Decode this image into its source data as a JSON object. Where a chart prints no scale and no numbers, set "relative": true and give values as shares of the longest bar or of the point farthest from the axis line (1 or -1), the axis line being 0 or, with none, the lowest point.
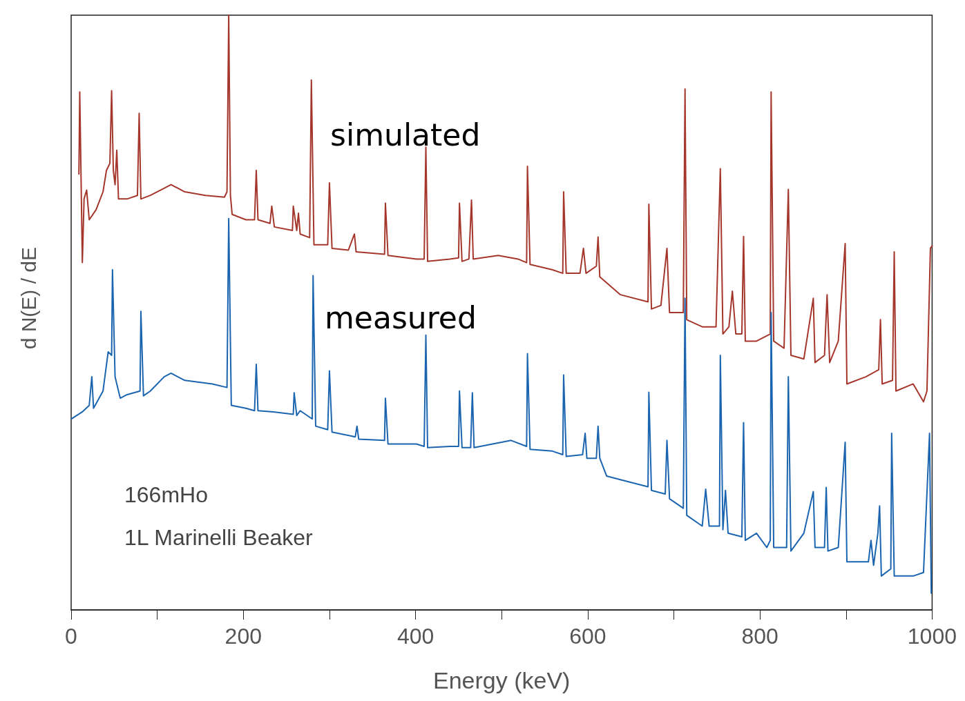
{
  "chart_data": {
    "type": "line",
    "xlabel": "Energy (keV)",
    "ylabel": "d N(E) / dE",
    "relative": true,
    "xlim": [
      0,
      1000
    ],
    "xticks": [
      0,
      {
        "value": 100,
        "label": null
      },
      200,
      {
        "value": 300,
        "label": null
      },
      400,
      {
        "value": 500,
        "label": null
      },
      600,
      {
        "value": 700,
        "label": null
      },
      800,
      {
        "value": 900,
        "label": null
      },
      1000
    ],
    "grid": false,
    "legend": false,
    "marker": "none",
    "line_style": "solid",
    "annotations": [
      "166mHo",
      "1L Marinelli Beaker"
    ],
    "series": [
      {
        "name": "simulated",
        "color": "#a5362b",
        "x": [
          9,
          10,
          13,
          15,
          18,
          21,
          29,
          37,
          41,
          45,
          47,
          49,
          51,
          53,
          55,
          65,
          77,
          79,
          81,
          92,
          108,
          116,
          132,
          156,
          178,
          181,
          183,
          185,
          187,
          203,
          213,
          215,
          217,
          231,
          233,
          236,
          257,
          258,
          262,
          264,
          266,
          277,
          279,
          282,
          298,
          300,
          303,
          322,
          329,
          331,
          364,
          365,
          368,
          401,
          410,
          412,
          414,
          440,
          450,
          451,
          454,
          462,
          465,
          467,
          496,
          519,
          529,
          530,
          533,
          559,
          571,
          572,
          575,
          591,
          595,
          598,
          610,
          612,
          614,
          638,
          670,
          671,
          674,
          685,
          692,
          695,
          711,
          713,
          715,
          733,
          749,
          754,
          757,
          764,
          768,
          772,
          779,
          781,
          783,
          796,
          812,
          813,
          816,
          828,
          833,
          836,
          851,
          862,
          864,
          875,
          878,
          881,
          891,
          899,
          901,
          923,
          938,
          940,
          942,
          954,
          956,
          958,
          978,
          990,
          994,
          998,
          1000
        ],
        "values": [
          0.733,
          0.871,
          0.584,
          0.691,
          0.706,
          0.656,
          0.673,
          0.703,
          0.739,
          0.751,
          0.873,
          0.739,
          0.715,
          0.773,
          0.691,
          0.691,
          0.697,
          0.835,
          0.691,
          0.697,
          0.709,
          0.715,
          0.703,
          0.697,
          0.694,
          0.703,
          1,
          0.697,
          0.665,
          0.656,
          0.656,
          0.739,
          0.656,
          0.65,
          0.679,
          0.644,
          0.638,
          0.679,
          0.638,
          0.667,
          0.632,
          0.626,
          0.891,
          0.614,
          0.614,
          0.718,
          0.608,
          0.605,
          0.632,
          0.602,
          0.598,
          0.684,
          0.596,
          0.59,
          0.59,
          0.778,
          0.586,
          0.59,
          0.592,
          0.684,
          0.586,
          0.59,
          0.689,
          0.59,
          0.596,
          0.59,
          0.584,
          0.746,
          0.581,
          0.572,
          0.566,
          0.703,
          0.566,
          0.566,
          0.608,
          0.566,
          0.578,
          0.627,
          0.56,
          0.53,
          0.518,
          0.682,
          0.506,
          0.512,
          0.608,
          0.5,
          0.5,
          0.876,
          0.488,
          0.476,
          0.476,
          0.742,
          0.464,
          0.476,
          0.536,
          0.464,
          0.464,
          0.628,
          0.452,
          0.452,
          0.464,
          0.871,
          0.452,
          0.44,
          0.707,
          0.428,
          0.422,
          0.524,
          0.416,
          0.428,
          0.53,
          0.416,
          0.452,
          0.616,
          0.38,
          0.392,
          0.404,
          0.488,
          0.38,
          0.386,
          0.602,
          0.368,
          0.38,
          0.35,
          0.368,
          0.608,
          0.612
        ]
      },
      {
        "name": "measured",
        "color": "#1a64b0",
        "x": [
          0,
          13,
          21,
          24,
          26,
          37,
          43,
          47,
          48,
          51,
          57,
          65,
          80,
          81,
          84,
          92,
          108,
          116,
          132,
          164,
          181,
          183,
          186,
          203,
          213,
          215,
          217,
          235,
          258,
          259,
          262,
          266,
          280,
          281,
          284,
          298,
          300,
          303,
          330,
          332,
          334,
          364,
          365,
          368,
          401,
          410,
          412,
          414,
          440,
          450,
          451,
          454,
          464,
          466,
          468,
          511,
          529,
          530,
          533,
          559,
          571,
          572,
          575,
          594,
          597,
          599,
          610,
          612,
          614,
          622,
          638,
          670,
          671,
          674,
          690,
          692,
          695,
          711,
          713,
          715,
          733,
          737,
          741,
          753,
          754,
          757,
          760,
          763,
          779,
          781,
          783,
          796,
          808,
          812,
          813,
          816,
          831,
          833,
          836,
          851,
          862,
          864,
          875,
          877,
          879,
          891,
          899,
          901,
          926,
          929,
          932,
          937,
          939,
          941,
          952,
          953,
          956,
          978,
          990,
          997,
          999
        ],
        "values": [
          0.321,
          0.333,
          0.344,
          0.392,
          0.339,
          0.368,
          0.434,
          0.428,
          0.572,
          0.392,
          0.356,
          0.362,
          0.368,
          0.502,
          0.36,
          0.368,
          0.392,
          0.398,
          0.386,
          0.38,
          0.374,
          0.658,
          0.344,
          0.339,
          0.335,
          0.413,
          0.335,
          0.333,
          0.329,
          0.365,
          0.327,
          0.335,
          0.321,
          0.562,
          0.309,
          0.303,
          0.402,
          0.299,
          0.291,
          0.309,
          0.287,
          0.285,
          0.356,
          0.279,
          0.279,
          0.275,
          0.462,
          0.273,
          0.275,
          0.275,
          0.368,
          0.273,
          0.273,
          0.365,
          0.273,
          0.285,
          0.275,
          0.431,
          0.27,
          0.267,
          0.261,
          0.395,
          0.258,
          0.261,
          0.297,
          0.255,
          0.255,
          0.309,
          0.255,
          0.225,
          0.219,
          0.207,
          0.366,
          0.201,
          0.195,
          0.285,
          0.187,
          0.171,
          0.524,
          0.159,
          0.141,
          0.203,
          0.141,
          0.141,
          0.428,
          0.135,
          0.201,
          0.129,
          0.123,
          0.315,
          0.117,
          0.129,
          0.105,
          0.117,
          0.5,
          0.105,
          0.105,
          0.392,
          0.099,
          0.129,
          0.199,
          0.105,
          0.105,
          0.206,
          0.099,
          0.105,
          0.282,
          0.081,
          0.081,
          0.117,
          0.075,
          0.129,
          0.175,
          0.057,
          0.069,
          0.297,
          0.057,
          0.057,
          0.063,
          0.297,
          0.028
        ]
      }
    ]
  }
}
